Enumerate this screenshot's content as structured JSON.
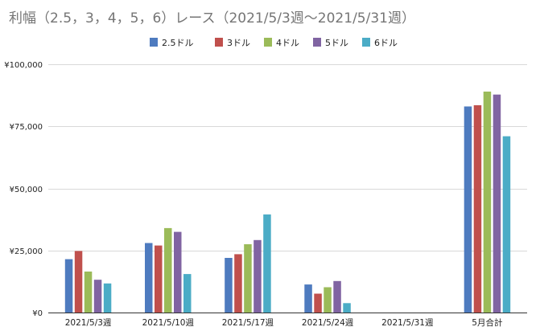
{
  "chart_data": {
    "type": "bar",
    "title": "利幅（2.5，3，4，5，6）レース（2021/5/3週〜2021/5/31週）",
    "xlabel": "",
    "ylabel": "",
    "categories": [
      "2021/5/3週",
      "2021/5/10週",
      "2021/5/17週",
      "2021/5/24週",
      "2021/5/31週",
      "5月合計"
    ],
    "ylim": [
      0,
      100000
    ],
    "yticks": [
      0,
      25000,
      50000,
      75000,
      100000
    ],
    "ytick_labels": [
      "¥0",
      "¥25,000",
      "¥50,000",
      "¥75,000",
      "¥100,000"
    ],
    "grid": true,
    "legend_position": "top",
    "series": [
      {
        "name": "2.5ドル",
        "color": "#4e7bbf",
        "values": [
          21500,
          28000,
          22000,
          11300,
          0,
          83000
        ]
      },
      {
        "name": "3ドル",
        "color": "#c0504d",
        "values": [
          24800,
          27000,
          23500,
          7600,
          0,
          83500
        ]
      },
      {
        "name": "4ドル",
        "color": "#9bbb59",
        "values": [
          16500,
          34000,
          27500,
          10200,
          0,
          89000
        ]
      },
      {
        "name": "5ドル",
        "color": "#8064a2",
        "values": [
          13200,
          32500,
          29200,
          12700,
          0,
          87800
        ]
      },
      {
        "name": "6ドル",
        "color": "#4bacc6",
        "values": [
          11700,
          15500,
          39500,
          3800,
          0,
          71000
        ]
      }
    ]
  }
}
